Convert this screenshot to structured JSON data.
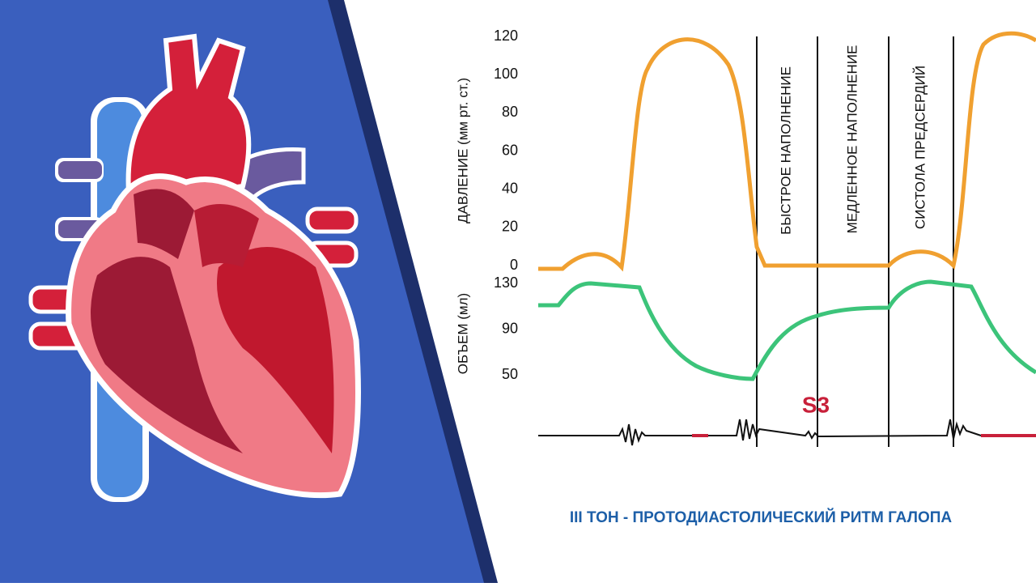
{
  "pressure_axis": {
    "label": "ДАВЛЕНИЕ (мм рт. ст.)",
    "ticks": [
      0,
      20,
      40,
      60,
      80,
      100,
      120
    ]
  },
  "volume_axis": {
    "label": "ОБЪЕМ (мл)",
    "ticks": [
      50,
      90,
      130
    ]
  },
  "phases": [
    "БЫСТРОЕ НАПОЛНЕНИЕ",
    "МЕДЛЕННОЕ НАПОЛНЕНИЕ",
    "СИСТОЛА ПРЕДСЕРДИЙ"
  ],
  "sound_label": "S3",
  "caption": "III ТОН - ПРОТОДИАСТОЛИЧЕСКИЙ РИТМ ГАЛОПА"
}
